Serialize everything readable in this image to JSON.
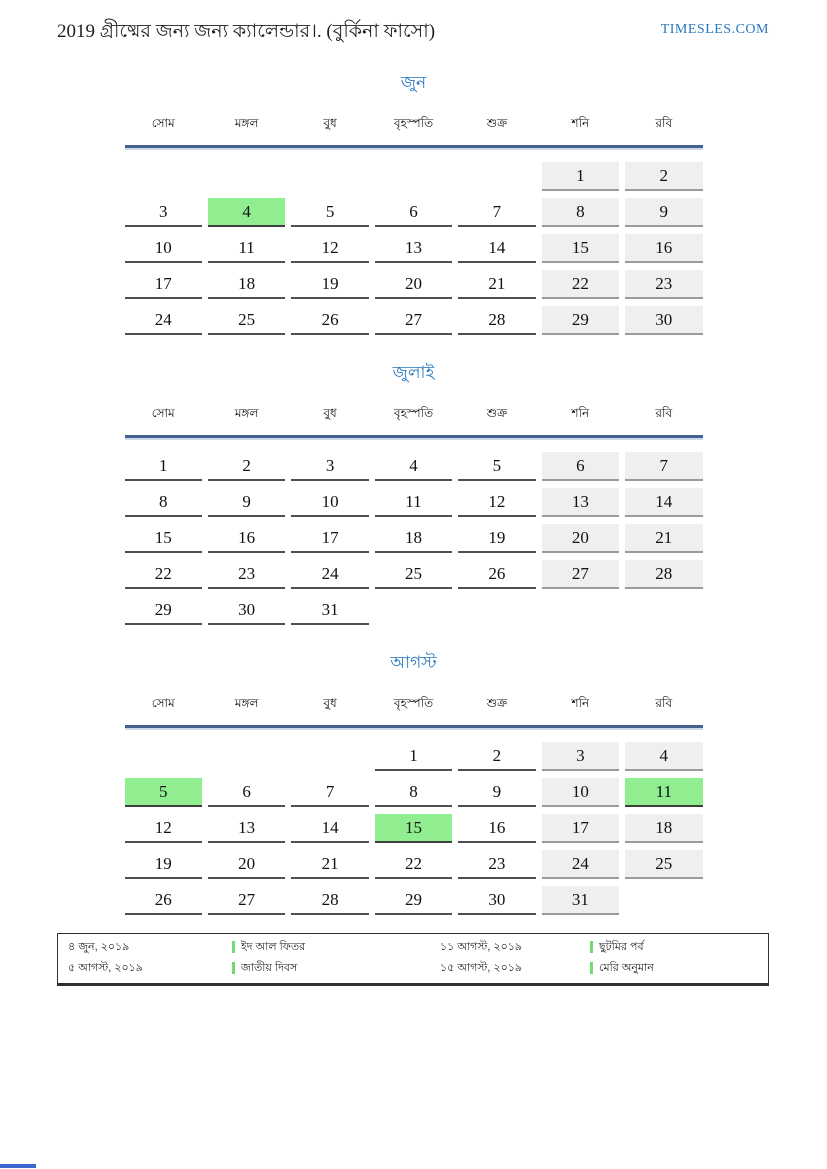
{
  "header": {
    "title": "2019 গ্রীষ্মের জন্য জন্য ক্যালেন্ডার।. (বুর্কিনা ফাসো)",
    "site": "TIMESLES.COM"
  },
  "colors": {
    "accent_blue": "#2878be",
    "header_rule_dark": "#45618e",
    "header_rule_light": "#ccd9ea",
    "weekend_bg": "#efefef",
    "holiday_green": "#90ee90"
  },
  "weekdays": [
    "সোম",
    "মঙ্গল",
    "বুধ",
    "বৃহস্পতি",
    "শুক্র",
    "শনি",
    "রবি"
  ],
  "months": [
    {
      "name": "জুন",
      "weeks": [
        [
          null,
          null,
          null,
          null,
          null,
          1,
          2
        ],
        [
          3,
          4,
          5,
          6,
          7,
          8,
          9
        ],
        [
          10,
          11,
          12,
          13,
          14,
          15,
          16
        ],
        [
          17,
          18,
          19,
          20,
          21,
          22,
          23
        ],
        [
          24,
          25,
          26,
          27,
          28,
          29,
          30
        ]
      ],
      "highlighted": [
        4
      ]
    },
    {
      "name": "জুলাই",
      "weeks": [
        [
          1,
          2,
          3,
          4,
          5,
          6,
          7
        ],
        [
          8,
          9,
          10,
          11,
          12,
          13,
          14
        ],
        [
          15,
          16,
          17,
          18,
          19,
          20,
          21
        ],
        [
          22,
          23,
          24,
          25,
          26,
          27,
          28
        ],
        [
          29,
          30,
          31,
          null,
          null,
          null,
          null
        ]
      ],
      "highlighted": []
    },
    {
      "name": "আগস্ট",
      "weeks": [
        [
          null,
          null,
          null,
          1,
          2,
          3,
          4
        ],
        [
          5,
          6,
          7,
          8,
          9,
          10,
          11
        ],
        [
          12,
          13,
          14,
          15,
          16,
          17,
          18
        ],
        [
          19,
          20,
          21,
          22,
          23,
          24,
          25
        ],
        [
          26,
          27,
          28,
          29,
          30,
          31,
          null
        ]
      ],
      "highlighted": [
        5,
        11,
        15
      ]
    }
  ],
  "legend": [
    {
      "date": "৪ জুন, ২০১৯",
      "label": "ইদ আল ফিতর"
    },
    {
      "date": "৫ আগস্ট, ২০১৯",
      "label": "জাতীয় দিবস"
    },
    {
      "date": "১১ আগস্ট, ২০১৯",
      "label": "ছুটমির পর্ব"
    },
    {
      "date": "১৫ আগস্ট, ২০১৯",
      "label": "মেরি অনুমান"
    }
  ]
}
